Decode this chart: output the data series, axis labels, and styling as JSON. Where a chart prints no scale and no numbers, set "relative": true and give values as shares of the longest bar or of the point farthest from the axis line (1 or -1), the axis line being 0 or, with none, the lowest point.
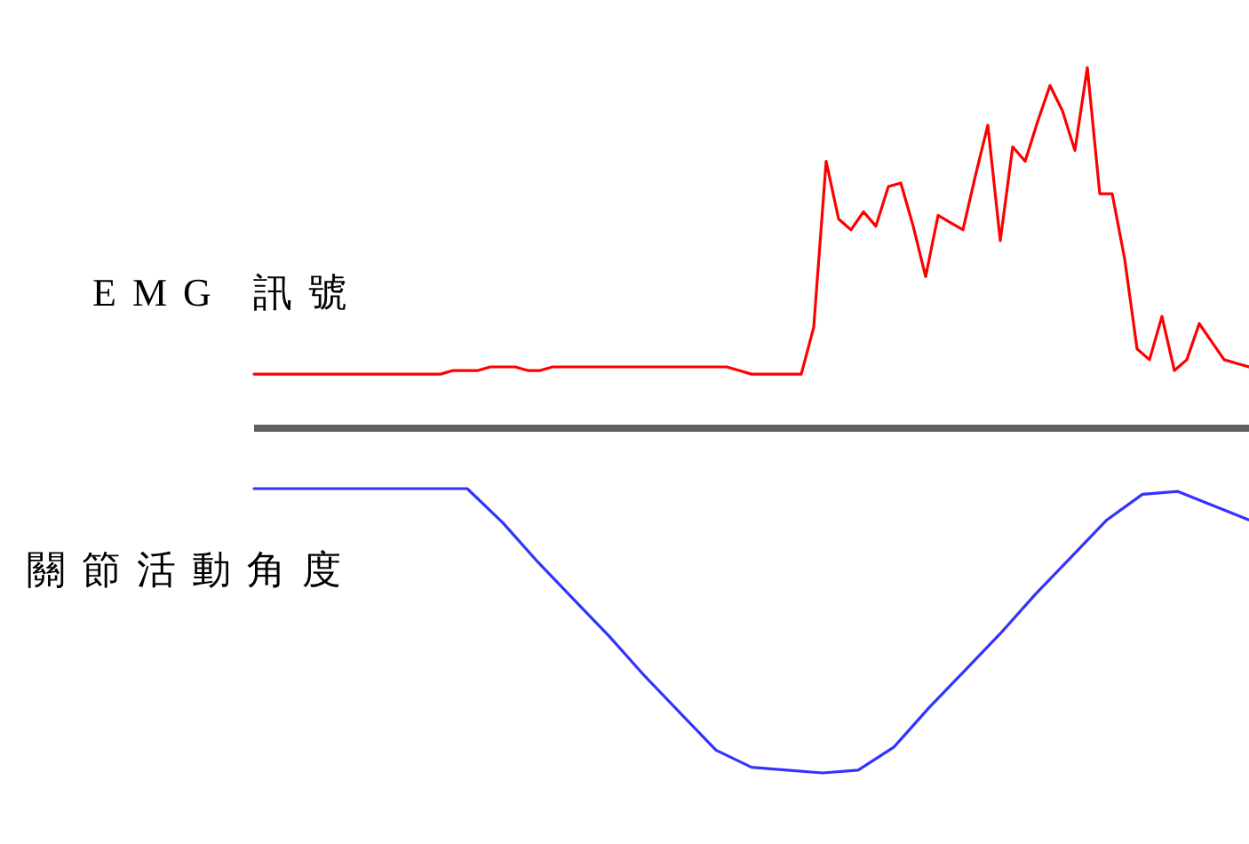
{
  "chart_data": [
    {
      "type": "line",
      "ylabel": "EMG 訊號",
      "relative": true,
      "categories": [
        null,
        null,
        null,
        null,
        null,
        null,
        null,
        null,
        null,
        null,
        null,
        null,
        null,
        null,
        null,
        null,
        null,
        null,
        null,
        null,
        null,
        null,
        null,
        null,
        null,
        null,
        null,
        null,
        null,
        null,
        null,
        null,
        null,
        null,
        null,
        null,
        null,
        null,
        null,
        null,
        null,
        null,
        null,
        null,
        null,
        null,
        null,
        null,
        null,
        null,
        null,
        null,
        null,
        null,
        null,
        null,
        null,
        null,
        null,
        null,
        null,
        null,
        null,
        null,
        null,
        null,
        null,
        null,
        null,
        null,
        null,
        null,
        null,
        null,
        null,
        null,
        null,
        null,
        null,
        null,
        null
      ],
      "series": [
        {
          "color": "#ff0000",
          "values": [
            0.15,
            0.15,
            0.15,
            0.15,
            0.15,
            0.15,
            0.15,
            0.15,
            0.15,
            0.15,
            0.15,
            0.15,
            0.15,
            0.15,
            0.15,
            0.15,
            0.16,
            0.16,
            0.16,
            0.17,
            0.17,
            0.17,
            0.16,
            0.16,
            0.17,
            0.17,
            0.17,
            0.17,
            0.17,
            0.17,
            0.17,
            0.17,
            0.17,
            0.17,
            0.17,
            0.17,
            0.17,
            0.17,
            0.17,
            0.16,
            0.15,
            0.15,
            0.15,
            0.15,
            0.15,
            0.28,
            0.74,
            0.58,
            0.55,
            0.6,
            0.56,
            0.67,
            0.68,
            0.56,
            0.42,
            0.59,
            0.57,
            0.55,
            0.7,
            0.84,
            0.52,
            0.78,
            0.74,
            0.85,
            0.95,
            0.88,
            0.77,
            1.0,
            0.65,
            0.65,
            0.47,
            0.22,
            0.19,
            0.31,
            0.16,
            0.19,
            0.29,
            0.24,
            0.19,
            0.18,
            0.17
          ]
        }
      ],
      "ref_lines": [
        {
          "axis": "y",
          "value": 0,
          "color": "#606060"
        }
      ]
    },
    {
      "type": "line",
      "ylabel": "關節活動角度",
      "relative": true,
      "categories": [
        null,
        null,
        null,
        null,
        null,
        null,
        null,
        null,
        null,
        null,
        null,
        null,
        null,
        null,
        null,
        null,
        null,
        null,
        null,
        null,
        null,
        null,
        null,
        null,
        null,
        null,
        null,
        null,
        null
      ],
      "series": [
        {
          "color": "#3333ff",
          "values": [
            1.0,
            1.0,
            1.0,
            1.0,
            1.0,
            1.0,
            1.0,
            0.88,
            0.74,
            0.61,
            0.48,
            0.34,
            0.21,
            0.08,
            0.02,
            0.01,
            0,
            0.01,
            0.09,
            0.23,
            0.36,
            0.49,
            0.63,
            0.76,
            0.89,
            0.98,
            0.99,
            0.94,
            0.89
          ]
        }
      ]
    }
  ]
}
